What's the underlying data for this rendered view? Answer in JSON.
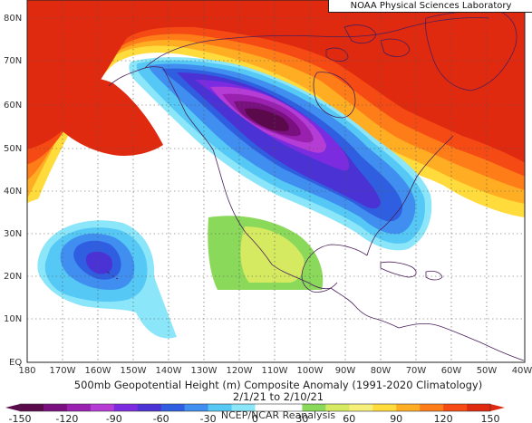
{
  "credit": "NOAA Physical Sciences Laboratory",
  "title_line": "500mb Geopotential Height (m) Composite Anomaly (1991-2020 Climatology)",
  "date_line": "2/1/21 to 2/10/21",
  "source_line": "NCEP/NCAR Reanalysis",
  "lat_labels": [
    "80N",
    "70N",
    "60N",
    "50N",
    "40N",
    "30N",
    "20N",
    "10N",
    "EQ"
  ],
  "lon_labels": [
    "180",
    "170W",
    "160W",
    "150W",
    "140W",
    "130W",
    "120W",
    "110W",
    "100W",
    "90W",
    "80W",
    "70W",
    "60W",
    "50W",
    "40W"
  ],
  "colorbar": {
    "tick_labels": [
      "-150",
      "-120",
      "-90",
      "-60",
      "-30",
      "0",
      "30",
      "60",
      "90",
      "120",
      "150"
    ],
    "colors": [
      "#5a0a4a",
      "#7a1080",
      "#9a20b0",
      "#b63cd6",
      "#7d2be0",
      "#4b32d4",
      "#2f5fe0",
      "#3f8ef0",
      "#55c8f5",
      "#8be6f9",
      "#ffffff",
      "#ffffff",
      "#8bd95a",
      "#d5ea60",
      "#f6f07a",
      "#ffdb3c",
      "#ffae24",
      "#ff7d18",
      "#f54a14",
      "#e02a10"
    ]
  }
}
